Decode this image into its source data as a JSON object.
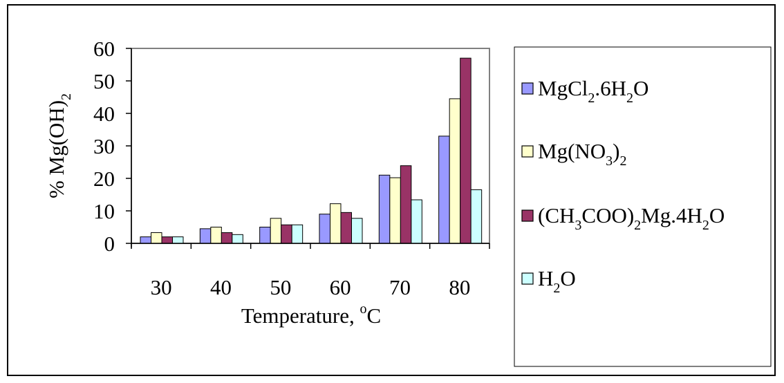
{
  "chart_data": {
    "type": "bar",
    "title": "",
    "xlabel": "Temperature, ",
    "xlabel_sup": "o",
    "xlabel_unit": "C",
    "ylabel": "% Mg(OH)",
    "ylabel_sub": "2",
    "categories": [
      "30",
      "40",
      "50",
      "60",
      "70",
      "80"
    ],
    "ylim": [
      0,
      60
    ],
    "yticks": [
      "0",
      "10",
      "20",
      "30",
      "40",
      "50",
      "60"
    ],
    "grid": false,
    "legend_position": "right",
    "series": [
      {
        "name": "MgCl2.6H2O",
        "legend_parts": [
          [
            "MgCl",
            ""
          ],
          [
            "2",
            "sub"
          ],
          [
            ".6H",
            ""
          ],
          [
            "2",
            "sub"
          ],
          [
            "O",
            ""
          ]
        ],
        "color": "#9999ff",
        "values": [
          2,
          4.5,
          5,
          9,
          21,
          33
        ]
      },
      {
        "name": "Mg(NO3)2",
        "legend_parts": [
          [
            "Mg(NO",
            ""
          ],
          [
            "3",
            "sub"
          ],
          [
            ")",
            ""
          ],
          [
            "2",
            "sub"
          ]
        ],
        "color": "#ffffcc",
        "values": [
          3.3,
          5,
          7.7,
          12.2,
          20.2,
          44.5
        ]
      },
      {
        "name": "(CH3COO)2Mg.4H2O",
        "legend_parts": [
          [
            "(CH",
            ""
          ],
          [
            "3",
            "sub"
          ],
          [
            "COO)",
            ""
          ],
          [
            "2",
            "sub"
          ],
          [
            "Mg.4H",
            ""
          ],
          [
            "2",
            "sub"
          ],
          [
            "O",
            ""
          ]
        ],
        "color": "#993366",
        "values": [
          2,
          3.3,
          5.7,
          9.5,
          23.9,
          57
        ]
      },
      {
        "name": "H2O",
        "legend_parts": [
          [
            "H",
            ""
          ],
          [
            "2",
            "sub"
          ],
          [
            "O",
            ""
          ]
        ],
        "color": "#ccffff",
        "values": [
          2,
          2.7,
          5.7,
          7.7,
          13.4,
          16.5
        ]
      }
    ]
  }
}
